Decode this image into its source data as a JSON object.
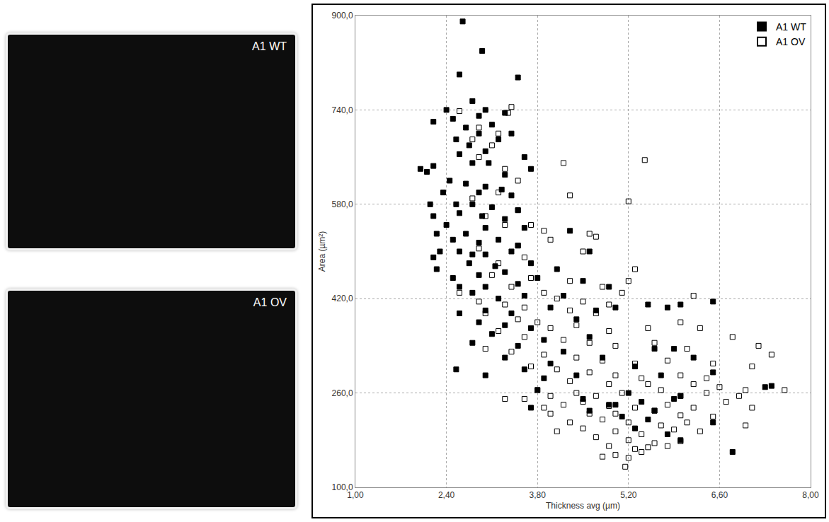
{
  "panels": [
    {
      "label": "A1 WT"
    },
    {
      "label": "A1 OV"
    }
  ],
  "chart_data": {
    "type": "scatter",
    "x_label": "Thickness avg (µm)",
    "y_label": "Area (µm²)",
    "xlim": [
      1,
      8
    ],
    "xticks": [
      {
        "value": 1,
        "label": "1,00"
      },
      {
        "value": 2.4,
        "label": "2,40"
      },
      {
        "value": 3.8,
        "label": "3,80"
      },
      {
        "value": 5.2,
        "label": "5,20"
      },
      {
        "value": 6.6,
        "label": "6,60"
      },
      {
        "value": 8,
        "label": "8,00"
      }
    ],
    "ylim": [
      100,
      900
    ],
    "yticks": [
      {
        "value": 100,
        "label": "100,0"
      },
      {
        "value": 260,
        "label": "260,0"
      },
      {
        "value": 420,
        "label": "420,0"
      },
      {
        "value": 580,
        "label": "580,0"
      },
      {
        "value": 740,
        "label": "740,0"
      },
      {
        "value": 900,
        "label": "900,0"
      }
    ],
    "grid": true,
    "legend": "top-right",
    "series": [
      {
        "name": "A1 WT",
        "color": "#000000",
        "marker": "square",
        "x": [
          2.65,
          2.95,
          2.6,
          3.5,
          2.8,
          2.4,
          2.2,
          3.0,
          3.3,
          2.5,
          2.9,
          3.1,
          2.7,
          2.9,
          3.4,
          2.55,
          3.2,
          2.75,
          3.0,
          2.6,
          3.6,
          2.8,
          3.05,
          2.0,
          2.1,
          2.2,
          3.3,
          3.7,
          2.45,
          2.7,
          3.0,
          3.25,
          2.35,
          2.9,
          3.4,
          2.15,
          2.55,
          2.8,
          3.1,
          3.5,
          2.2,
          2.6,
          2.95,
          3.3,
          2.4,
          2.25,
          3.0,
          3.6,
          2.7,
          4.3,
          2.5,
          2.9,
          3.2,
          3.5,
          2.3,
          2.6,
          2.2,
          3.0,
          3.4,
          2.8,
          4.6,
          2.75,
          3.15,
          2.25,
          3.7,
          2.9,
          3.3,
          2.5,
          4.1,
          3.0,
          2.6,
          3.5,
          4.5,
          3.8,
          2.8,
          3.2,
          3.6,
          4.2,
          4.9,
          5.5,
          5.8,
          6.0,
          6.5,
          2.6,
          3.0,
          3.4,
          4.0,
          4.7,
          5.0,
          2.9,
          3.3,
          3.7,
          4.4,
          3.1,
          3.9,
          4.6,
          2.8,
          3.5,
          4.2,
          5.6,
          5.9,
          3.3,
          4.8,
          2.55,
          3.6,
          4.0,
          5.3,
          6.2,
          3.0,
          3.9,
          4.4,
          5.7,
          6.5,
          3.8,
          5.2,
          6.0,
          4.5,
          5.4,
          5.9,
          3.7,
          4.9,
          5.6,
          7.3,
          7.4,
          5.1,
          5.5,
          6.5,
          5.3,
          5.8,
          6.0,
          6.8,
          4.6,
          5.0
        ],
        "y": [
          890,
          840,
          800,
          795,
          755,
          740,
          720,
          740,
          735,
          725,
          730,
          715,
          710,
          700,
          700,
          690,
          690,
          680,
          670,
          665,
          660,
          650,
          650,
          640,
          635,
          645,
          630,
          640,
          620,
          615,
          610,
          605,
          600,
          600,
          595,
          580,
          580,
          580,
          575,
          570,
          560,
          565,
          560,
          555,
          545,
          530,
          540,
          540,
          530,
          535,
          520,
          515,
          520,
          510,
          500,
          500,
          490,
          495,
          500,
          495,
          500,
          480,
          475,
          470,
          480,
          460,
          465,
          455,
          470,
          440,
          440,
          445,
          450,
          455,
          430,
          420,
          425,
          425,
          440,
          410,
          405,
          410,
          415,
          395,
          400,
          395,
          405,
          400,
          405,
          380,
          375,
          370,
          385,
          360,
          350,
          355,
          345,
          340,
          330,
          335,
          335,
          320,
          320,
          300,
          300,
          310,
          305,
          320,
          290,
          285,
          290,
          290,
          295,
          265,
          260,
          255,
          250,
          245,
          250,
          235,
          240,
          230,
          270,
          272,
          220,
          215,
          210,
          200,
          190,
          180,
          160,
          230,
          240
        ]
      },
      {
        "name": "A1 OV",
        "color": "#000000",
        "marker": "square-open",
        "x": [
          3.4,
          2.6,
          3.35,
          2.9,
          3.2,
          2.8,
          3.1,
          2.9,
          4.2,
          5.45,
          3.3,
          3.5,
          3.2,
          4.3,
          2.8,
          5.2,
          3.5,
          3.0,
          3.3,
          3.7,
          3.9,
          4.6,
          4.7,
          4.0,
          3.5,
          2.9,
          4.5,
          3.6,
          3.2,
          5.3,
          3.1,
          3.7,
          4.3,
          4.8,
          5.2,
          3.4,
          2.6,
          3.9,
          4.1,
          4.5,
          4.9,
          5.1,
          6.2,
          2.9,
          3.3,
          3.6,
          4.3,
          4.7,
          6.0,
          3.0,
          3.5,
          3.8,
          4.0,
          4.4,
          4.9,
          5.5,
          6.3,
          6.8,
          3.2,
          3.6,
          4.2,
          4.6,
          5.0,
          5.6,
          6.1,
          7.2,
          7.4,
          3.0,
          3.4,
          3.9,
          4.4,
          4.8,
          5.3,
          5.8,
          6.5,
          7.1,
          3.7,
          4.1,
          4.6,
          5.0,
          5.4,
          6.0,
          6.4,
          4.3,
          4.9,
          5.5,
          6.2,
          6.6,
          7.0,
          7.6,
          3.3,
          3.6,
          3.8,
          4.0,
          4.4,
          4.7,
          5.1,
          5.7,
          6.0,
          6.4,
          6.9,
          3.9,
          4.2,
          4.5,
          4.9,
          5.3,
          5.8,
          6.2,
          6.7,
          7.1,
          4.0,
          4.6,
          5.0,
          5.6,
          6.0,
          6.5,
          4.3,
          4.8,
          5.2,
          5.7,
          6.1,
          7.0,
          4.1,
          4.5,
          5.0,
          5.4,
          5.9,
          6.3,
          4.7,
          5.2,
          5.6,
          6.0,
          4.9,
          5.3,
          5.5,
          5.8,
          5.0,
          5.2,
          5.4,
          5.15,
          4.8
        ],
        "y": [
          745,
          738,
          735,
          710,
          700,
          690,
          680,
          660,
          650,
          655,
          640,
          620,
          600,
          595,
          590,
          585,
          570,
          560,
          545,
          545,
          535,
          530,
          525,
          520,
          510,
          505,
          500,
          490,
          480,
          470,
          460,
          455,
          450,
          440,
          450,
          440,
          430,
          430,
          420,
          415,
          410,
          430,
          425,
          415,
          410,
          405,
          400,
          395,
          380,
          395,
          385,
          380,
          370,
          375,
          365,
          370,
          370,
          355,
          365,
          355,
          350,
          345,
          340,
          345,
          335,
          340,
          325,
          335,
          330,
          325,
          320,
          315,
          310,
          315,
          310,
          305,
          305,
          300,
          295,
          290,
          285,
          290,
          285,
          280,
          275,
          275,
          275,
          270,
          265,
          265,
          250,
          250,
          265,
          255,
          260,
          255,
          260,
          265,
          255,
          260,
          255,
          235,
          240,
          245,
          238,
          235,
          240,
          235,
          245,
          235,
          225,
          225,
          225,
          230,
          222,
          220,
          210,
          215,
          210,
          205,
          210,
          205,
          195,
          200,
          195,
          190,
          198,
          195,
          185,
          180,
          175,
          178,
          170,
          165,
          168,
          170,
          155,
          150,
          160,
          135,
          152
        ]
      }
    ]
  }
}
